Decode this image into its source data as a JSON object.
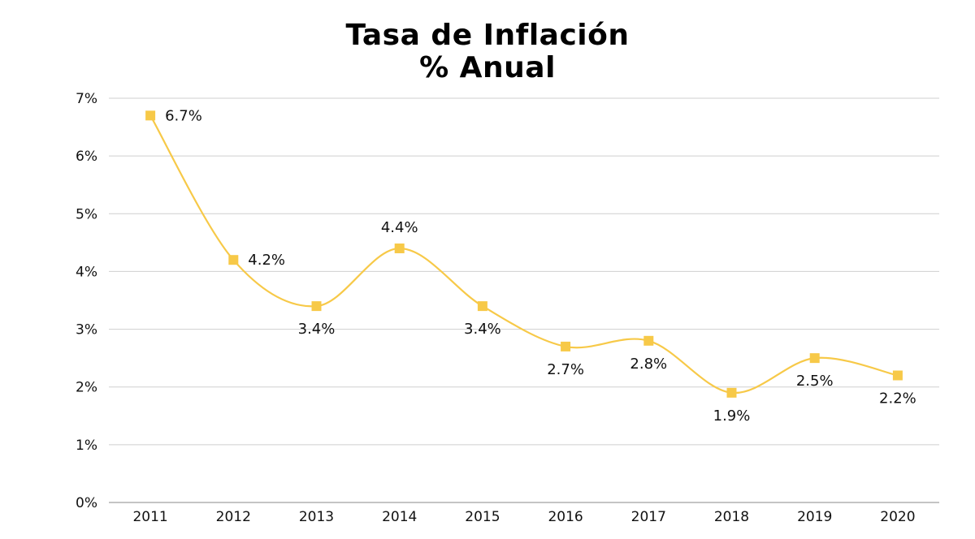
{
  "chart_data": {
    "type": "line",
    "title": "Tasa de Inflación",
    "subtitle": "% Anual",
    "categories": [
      "2011",
      "2012",
      "2013",
      "2014",
      "2015",
      "2016",
      "2017",
      "2018",
      "2019",
      "2020"
    ],
    "series": [
      {
        "values": [
          6.7,
          4.2,
          3.4,
          4.4,
          3.4,
          2.7,
          2.8,
          1.9,
          2.5,
          2.2
        ],
        "labels": [
          "6.7%",
          "4.2%",
          "3.4%",
          "4.4%",
          "3.4%",
          "2.7%",
          "2.8%",
          "1.9%",
          "2.5%",
          "2.2%"
        ],
        "color": "#F7C948"
      }
    ],
    "ylim": [
      0,
      7
    ],
    "yticks": [
      "0%",
      "1%",
      "2%",
      "3%",
      "4%",
      "5%",
      "6%",
      "7%"
    ],
    "grid": true,
    "smooth": true,
    "marker": "square",
    "gridColor": "#cfcfcf"
  }
}
